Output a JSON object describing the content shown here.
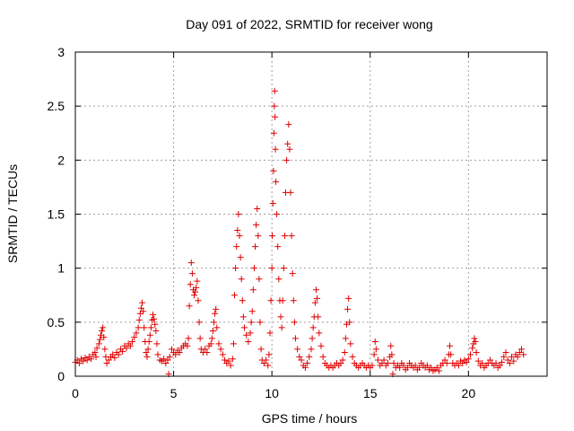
{
  "chart_data": {
    "type": "scatter",
    "title": "Day 091 of 2022, SRMTID for receiver wong",
    "xlabel": "GPS time / hours",
    "ylabel": "SRMTID / TECUs",
    "xlim": [
      0,
      24
    ],
    "ylim": [
      0,
      3
    ],
    "xticks": [
      0,
      5,
      10,
      15,
      20
    ],
    "xtick_labels": [
      "0",
      "5",
      "10",
      "15",
      "20"
    ],
    "yticks": [
      0,
      0.5,
      1,
      1.5,
      2,
      2.5,
      3
    ],
    "ytick_labels": [
      "0",
      "0.5",
      "1",
      "1.5",
      "2",
      "2.5",
      "3"
    ],
    "grid": true,
    "marker": "+",
    "color": "#e00000",
    "series": [
      {
        "name": "SRMTID",
        "points": [
          [
            0.0,
            0.13
          ],
          [
            0.1,
            0.15
          ],
          [
            0.2,
            0.12
          ],
          [
            0.3,
            0.16
          ],
          [
            0.4,
            0.14
          ],
          [
            0.5,
            0.17
          ],
          [
            0.6,
            0.15
          ],
          [
            0.7,
            0.18
          ],
          [
            0.8,
            0.16
          ],
          [
            0.9,
            0.2
          ],
          [
            1.0,
            0.22
          ],
          [
            1.05,
            0.18
          ],
          [
            1.1,
            0.26
          ],
          [
            1.2,
            0.3
          ],
          [
            1.25,
            0.34
          ],
          [
            1.3,
            0.38
          ],
          [
            1.35,
            0.42
          ],
          [
            1.4,
            0.45
          ],
          [
            1.45,
            0.36
          ],
          [
            1.5,
            0.25
          ],
          [
            1.55,
            0.18
          ],
          [
            1.6,
            0.12
          ],
          [
            1.7,
            0.15
          ],
          [
            1.8,
            0.18
          ],
          [
            1.9,
            0.2
          ],
          [
            2.0,
            0.17
          ],
          [
            2.1,
            0.22
          ],
          [
            2.2,
            0.2
          ],
          [
            2.3,
            0.25
          ],
          [
            2.4,
            0.23
          ],
          [
            2.5,
            0.28
          ],
          [
            2.6,
            0.26
          ],
          [
            2.7,
            0.3
          ],
          [
            2.8,
            0.28
          ],
          [
            2.9,
            0.32
          ],
          [
            3.0,
            0.36
          ],
          [
            3.1,
            0.4
          ],
          [
            3.2,
            0.45
          ],
          [
            3.25,
            0.52
          ],
          [
            3.3,
            0.58
          ],
          [
            3.35,
            0.63
          ],
          [
            3.4,
            0.68
          ],
          [
            3.45,
            0.6
          ],
          [
            3.5,
            0.45
          ],
          [
            3.55,
            0.32
          ],
          [
            3.6,
            0.22
          ],
          [
            3.65,
            0.18
          ],
          [
            3.7,
            0.25
          ],
          [
            3.75,
            0.32
          ],
          [
            3.8,
            0.38
          ],
          [
            3.85,
            0.45
          ],
          [
            3.9,
            0.52
          ],
          [
            3.95,
            0.57
          ],
          [
            4.0,
            0.53
          ],
          [
            4.05,
            0.48
          ],
          [
            4.1,
            0.42
          ],
          [
            4.15,
            0.3
          ],
          [
            4.2,
            0.2
          ],
          [
            4.3,
            0.15
          ],
          [
            4.4,
            0.14
          ],
          [
            4.5,
            0.16
          ],
          [
            4.6,
            0.12
          ],
          [
            4.7,
            0.15
          ],
          [
            4.75,
            0.02
          ],
          [
            4.8,
            0.18
          ],
          [
            4.9,
            0.25
          ],
          [
            5.0,
            0.22
          ],
          [
            5.1,
            0.2
          ],
          [
            5.2,
            0.24
          ],
          [
            5.3,
            0.22
          ],
          [
            5.4,
            0.26
          ],
          [
            5.5,
            0.28
          ],
          [
            5.6,
            0.3
          ],
          [
            5.7,
            0.28
          ],
          [
            5.75,
            0.35
          ],
          [
            5.8,
            0.65
          ],
          [
            5.85,
            0.85
          ],
          [
            5.9,
            1.05
          ],
          [
            5.95,
            0.95
          ],
          [
            6.0,
            0.8
          ],
          [
            6.05,
            0.75
          ],
          [
            6.1,
            0.78
          ],
          [
            6.15,
            0.82
          ],
          [
            6.2,
            0.88
          ],
          [
            6.25,
            0.7
          ],
          [
            6.3,
            0.5
          ],
          [
            6.35,
            0.35
          ],
          [
            6.4,
            0.25
          ],
          [
            6.5,
            0.22
          ],
          [
            6.6,
            0.25
          ],
          [
            6.7,
            0.22
          ],
          [
            6.8,
            0.28
          ],
          [
            6.9,
            0.3
          ],
          [
            6.95,
            0.35
          ],
          [
            7.0,
            0.42
          ],
          [
            7.05,
            0.5
          ],
          [
            7.1,
            0.58
          ],
          [
            7.15,
            0.62
          ],
          [
            7.2,
            0.45
          ],
          [
            7.3,
            0.3
          ],
          [
            7.4,
            0.25
          ],
          [
            7.5,
            0.2
          ],
          [
            7.6,
            0.15
          ],
          [
            7.7,
            0.12
          ],
          [
            7.8,
            0.14
          ],
          [
            7.9,
            0.1
          ],
          [
            8.0,
            0.16
          ],
          [
            8.05,
            0.3
          ],
          [
            8.1,
            0.75
          ],
          [
            8.15,
            1.0
          ],
          [
            8.2,
            1.2
          ],
          [
            8.25,
            1.35
          ],
          [
            8.3,
            1.5
          ],
          [
            8.35,
            1.3
          ],
          [
            8.4,
            1.1
          ],
          [
            8.45,
            0.9
          ],
          [
            8.5,
            0.7
          ],
          [
            8.55,
            0.55
          ],
          [
            8.6,
            0.45
          ],
          [
            8.7,
            0.38
          ],
          [
            8.8,
            0.32
          ],
          [
            8.9,
            0.4
          ],
          [
            8.95,
            0.5
          ],
          [
            9.0,
            0.6
          ],
          [
            9.05,
            0.8
          ],
          [
            9.1,
            1.0
          ],
          [
            9.15,
            1.2
          ],
          [
            9.2,
            1.4
          ],
          [
            9.25,
            1.55
          ],
          [
            9.3,
            1.3
          ],
          [
            9.35,
            0.9
          ],
          [
            9.4,
            0.5
          ],
          [
            9.45,
            0.25
          ],
          [
            9.5,
            0.15
          ],
          [
            9.6,
            0.12
          ],
          [
            9.7,
            0.15
          ],
          [
            9.8,
            0.1
          ],
          [
            9.85,
            0.2
          ],
          [
            9.9,
            0.4
          ],
          [
            9.95,
            0.7
          ],
          [
            10.0,
            1.0
          ],
          [
            10.02,
            1.3
          ],
          [
            10.05,
            1.6
          ],
          [
            10.08,
            1.9
          ],
          [
            10.1,
            2.25
          ],
          [
            10.12,
            2.5
          ],
          [
            10.14,
            2.64
          ],
          [
            10.16,
            2.4
          ],
          [
            10.18,
            2.1
          ],
          [
            10.2,
            1.8
          ],
          [
            10.25,
            1.5
          ],
          [
            10.3,
            1.2
          ],
          [
            10.35,
            0.9
          ],
          [
            10.4,
            0.7
          ],
          [
            10.45,
            0.55
          ],
          [
            10.5,
            0.45
          ],
          [
            10.55,
            0.7
          ],
          [
            10.6,
            1.0
          ],
          [
            10.65,
            1.3
          ],
          [
            10.7,
            1.7
          ],
          [
            10.75,
            2.0
          ],
          [
            10.8,
            2.15
          ],
          [
            10.85,
            2.33
          ],
          [
            10.9,
            2.1
          ],
          [
            10.95,
            1.7
          ],
          [
            11.0,
            1.3
          ],
          [
            11.05,
            0.95
          ],
          [
            11.1,
            0.7
          ],
          [
            11.15,
            0.5
          ],
          [
            11.2,
            0.35
          ],
          [
            11.3,
            0.25
          ],
          [
            11.4,
            0.18
          ],
          [
            11.5,
            0.15
          ],
          [
            11.6,
            0.1
          ],
          [
            11.7,
            0.08
          ],
          [
            11.8,
            0.12
          ],
          [
            11.9,
            0.18
          ],
          [
            12.0,
            0.25
          ],
          [
            12.05,
            0.35
          ],
          [
            12.1,
            0.45
          ],
          [
            12.15,
            0.55
          ],
          [
            12.2,
            0.68
          ],
          [
            12.25,
            0.8
          ],
          [
            12.3,
            0.72
          ],
          [
            12.35,
            0.55
          ],
          [
            12.4,
            0.4
          ],
          [
            12.5,
            0.28
          ],
          [
            12.6,
            0.18
          ],
          [
            12.7,
            0.12
          ],
          [
            12.8,
            0.1
          ],
          [
            12.9,
            0.08
          ],
          [
            13.0,
            0.1
          ],
          [
            13.1,
            0.08
          ],
          [
            13.2,
            0.1
          ],
          [
            13.3,
            0.12
          ],
          [
            13.4,
            0.1
          ],
          [
            13.5,
            0.12
          ],
          [
            13.6,
            0.15
          ],
          [
            13.7,
            0.22
          ],
          [
            13.75,
            0.35
          ],
          [
            13.8,
            0.48
          ],
          [
            13.85,
            0.62
          ],
          [
            13.9,
            0.72
          ],
          [
            13.95,
            0.5
          ],
          [
            14.0,
            0.3
          ],
          [
            14.1,
            0.18
          ],
          [
            14.2,
            0.12
          ],
          [
            14.3,
            0.1
          ],
          [
            14.4,
            0.08
          ],
          [
            14.5,
            0.1
          ],
          [
            14.6,
            0.12
          ],
          [
            14.7,
            0.1
          ],
          [
            14.8,
            0.08
          ],
          [
            14.9,
            0.1
          ],
          [
            15.0,
            0.08
          ],
          [
            15.1,
            0.1
          ],
          [
            15.2,
            0.2
          ],
          [
            15.25,
            0.32
          ],
          [
            15.3,
            0.25
          ],
          [
            15.4,
            0.15
          ],
          [
            15.5,
            0.1
          ],
          [
            15.6,
            0.12
          ],
          [
            15.7,
            0.15
          ],
          [
            15.8,
            0.1
          ],
          [
            15.9,
            0.12
          ],
          [
            16.0,
            0.18
          ],
          [
            16.05,
            0.28
          ],
          [
            16.1,
            0.2
          ],
          [
            16.15,
            0.02
          ],
          [
            16.2,
            0.12
          ],
          [
            16.3,
            0.08
          ],
          [
            16.4,
            0.1
          ],
          [
            16.5,
            0.08
          ],
          [
            16.6,
            0.12
          ],
          [
            16.7,
            0.1
          ],
          [
            16.8,
            0.06
          ],
          [
            16.9,
            0.08
          ],
          [
            17.0,
            0.12
          ],
          [
            17.1,
            0.1
          ],
          [
            17.2,
            0.08
          ],
          [
            17.3,
            0.1
          ],
          [
            17.4,
            0.06
          ],
          [
            17.5,
            0.08
          ],
          [
            17.6,
            0.12
          ],
          [
            17.7,
            0.1
          ],
          [
            17.8,
            0.08
          ],
          [
            17.9,
            0.1
          ],
          [
            18.0,
            0.06
          ],
          [
            18.1,
            0.08
          ],
          [
            18.2,
            0.05
          ],
          [
            18.3,
            0.06
          ],
          [
            18.4,
            0.08
          ],
          [
            18.5,
            0.05
          ],
          [
            18.6,
            0.1
          ],
          [
            18.7,
            0.12
          ],
          [
            18.8,
            0.15
          ],
          [
            18.9,
            0.12
          ],
          [
            19.0,
            0.2
          ],
          [
            19.05,
            0.28
          ],
          [
            19.1,
            0.2
          ],
          [
            19.2,
            0.12
          ],
          [
            19.3,
            0.1
          ],
          [
            19.4,
            0.12
          ],
          [
            19.5,
            0.1
          ],
          [
            19.6,
            0.14
          ],
          [
            19.7,
            0.12
          ],
          [
            19.8,
            0.15
          ],
          [
            19.9,
            0.13
          ],
          [
            20.0,
            0.16
          ],
          [
            20.1,
            0.2
          ],
          [
            20.2,
            0.26
          ],
          [
            20.25,
            0.3
          ],
          [
            20.3,
            0.35
          ],
          [
            20.35,
            0.32
          ],
          [
            20.4,
            0.22
          ],
          [
            20.5,
            0.14
          ],
          [
            20.6,
            0.1
          ],
          [
            20.7,
            0.12
          ],
          [
            20.8,
            0.08
          ],
          [
            20.9,
            0.1
          ],
          [
            21.0,
            0.12
          ],
          [
            21.1,
            0.15
          ],
          [
            21.2,
            0.12
          ],
          [
            21.3,
            0.1
          ],
          [
            21.4,
            0.12
          ],
          [
            21.5,
            0.08
          ],
          [
            21.6,
            0.1
          ],
          [
            21.7,
            0.13
          ],
          [
            21.8,
            0.18
          ],
          [
            21.9,
            0.22
          ],
          [
            22.0,
            0.15
          ],
          [
            22.1,
            0.12
          ],
          [
            22.2,
            0.18
          ],
          [
            22.3,
            0.14
          ],
          [
            22.4,
            0.2
          ],
          [
            22.5,
            0.18
          ],
          [
            22.6,
            0.22
          ],
          [
            22.7,
            0.25
          ],
          [
            22.8,
            0.2
          ]
        ]
      }
    ]
  }
}
